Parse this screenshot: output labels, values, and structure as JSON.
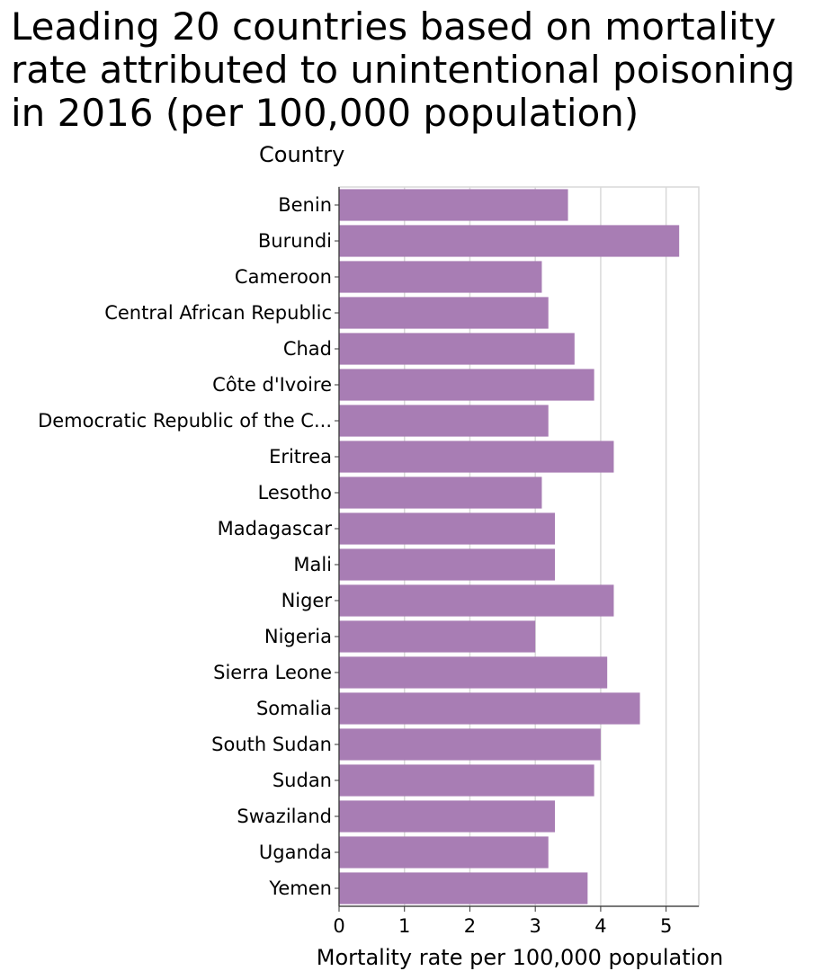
{
  "chart_data": {
    "type": "bar",
    "orientation": "horizontal",
    "title": "Leading 20 countries based on mortality rate attributed to unintentional poisoning in 2016 (per 100,000 population)",
    "xlabel": "Mortality rate per 100,000 population",
    "ylabel": "Country",
    "xlim": [
      0,
      5.5
    ],
    "xticks": [
      "0",
      "1",
      "2",
      "3",
      "4",
      "5"
    ],
    "grid": "vertical",
    "bar_color": "#a87db4",
    "categories": [
      "Benin",
      "Burundi",
      "Cameroon",
      "Central African Republic",
      "Chad",
      "Côte d'Ivoire",
      "Democratic Republic of the C...",
      "Eritrea",
      "Lesotho",
      "Madagascar",
      "Mali",
      "Niger",
      "Nigeria",
      "Sierra Leone",
      "Somalia",
      "South Sudan",
      "Sudan",
      "Swaziland",
      "Uganda",
      "Yemen"
    ],
    "values": [
      3.5,
      5.2,
      3.1,
      3.2,
      3.6,
      3.9,
      3.2,
      4.2,
      3.1,
      3.3,
      3.3,
      4.2,
      3.0,
      4.1,
      4.6,
      4.0,
      3.9,
      3.3,
      3.2,
      3.8
    ]
  }
}
